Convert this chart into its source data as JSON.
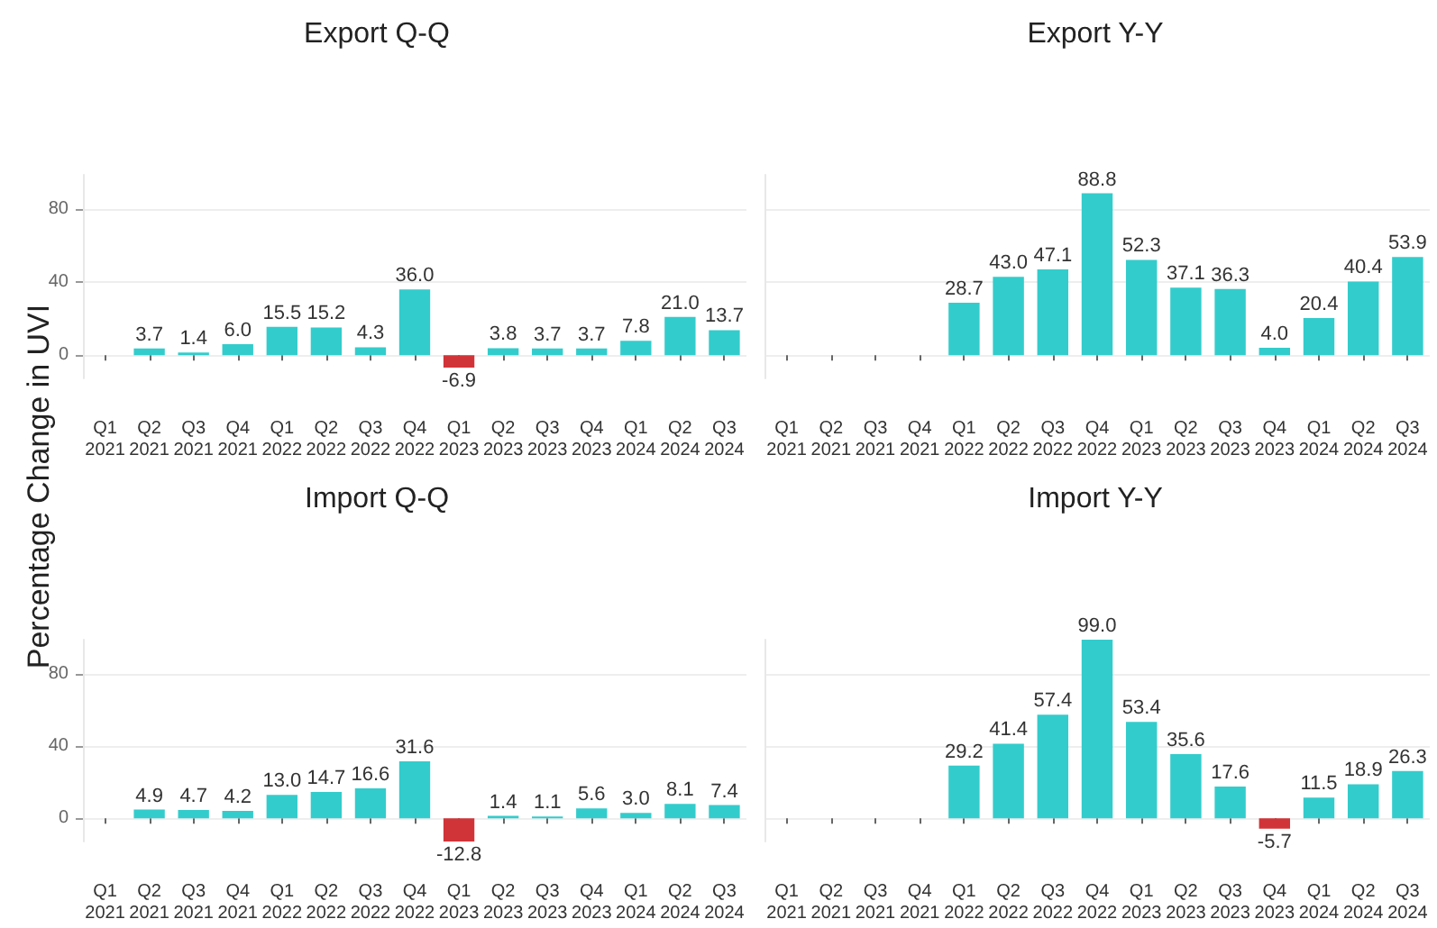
{
  "chart_data": [
    {
      "type": "bar",
      "title": "Export Q-Q",
      "ylabel": "Percentage Change in UVI",
      "categories": [
        "Q1\n2021",
        "Q2\n2021",
        "Q3\n2021",
        "Q4\n2021",
        "Q1\n2022",
        "Q2\n2022",
        "Q3\n2022",
        "Q4\n2022",
        "Q1\n2023",
        "Q2\n2023",
        "Q3\n2023",
        "Q4\n2023",
        "Q1\n2024",
        "Q2\n2024",
        "Q3\n2024"
      ],
      "values": [
        null,
        3.7,
        1.4,
        6.0,
        15.5,
        15.2,
        4.3,
        36.0,
        -6.9,
        3.8,
        3.7,
        3.7,
        7.8,
        21.0,
        13.7
      ],
      "colors": [
        "#33cccc",
        "#33cccc",
        "#33cccc",
        "#33cccc",
        "#33cccc",
        "#33cccc",
        "#33cccc",
        "#33cccc",
        "#d13438",
        "#33cccc",
        "#33cccc",
        "#33cccc",
        "#33cccc",
        "#33cccc",
        "#33cccc"
      ],
      "value_labels": [
        null,
        "3.7",
        "1.4",
        "6.0",
        "15.5",
        "15.2",
        "4.3",
        "36.0",
        "-6.9",
        "3.8",
        "3.7",
        "3.7",
        "7.8",
        "21.0",
        "13.7"
      ],
      "ylim": [
        -12.8,
        99
      ],
      "yticks": [
        0,
        40,
        80
      ],
      "grid": "y"
    },
    {
      "type": "bar",
      "title": "Export Y-Y",
      "categories": [
        "Q1\n2021",
        "Q2\n2021",
        "Q3\n2021",
        "Q4\n2021",
        "Q1\n2022",
        "Q2\n2022",
        "Q3\n2022",
        "Q4\n2022",
        "Q1\n2023",
        "Q2\n2023",
        "Q3\n2023",
        "Q4\n2023",
        "Q1\n2024",
        "Q2\n2024",
        "Q3\n2024"
      ],
      "values": [
        null,
        null,
        null,
        null,
        28.7,
        43.0,
        47.1,
        88.8,
        52.3,
        37.1,
        36.3,
        4.0,
        20.4,
        40.4,
        53.9
      ],
      "colors": [
        "#33cccc",
        "#33cccc",
        "#33cccc",
        "#33cccc",
        "#33cccc",
        "#33cccc",
        "#33cccc",
        "#33cccc",
        "#33cccc",
        "#33cccc",
        "#33cccc",
        "#33cccc",
        "#33cccc",
        "#33cccc",
        "#33cccc"
      ],
      "value_labels": [
        null,
        null,
        null,
        null,
        "28.7",
        "43.0",
        "47.1",
        "88.8",
        "52.3",
        "37.1",
        "36.3",
        "4.0",
        "20.4",
        "40.4",
        "53.9"
      ],
      "ylim": [
        -12.8,
        99
      ],
      "yticks": [
        0,
        40,
        80
      ],
      "grid": "y",
      "tick_labels": "x"
    },
    {
      "type": "bar",
      "title": "Import Q-Q",
      "categories": [
        "Q1\n2021",
        "Q2\n2021",
        "Q3\n2021",
        "Q4\n2021",
        "Q1\n2022",
        "Q2\n2022",
        "Q3\n2022",
        "Q4\n2022",
        "Q1\n2023",
        "Q2\n2023",
        "Q3\n2023",
        "Q4\n2023",
        "Q1\n2024",
        "Q2\n2024",
        "Q3\n2024"
      ],
      "values": [
        null,
        4.9,
        4.7,
        4.2,
        13.0,
        14.7,
        16.6,
        31.6,
        -12.8,
        1.4,
        1.1,
        5.6,
        3.0,
        8.1,
        7.4
      ],
      "colors": [
        "#33cccc",
        "#33cccc",
        "#33cccc",
        "#33cccc",
        "#33cccc",
        "#33cccc",
        "#33cccc",
        "#33cccc",
        "#d13438",
        "#33cccc",
        "#33cccc",
        "#33cccc",
        "#33cccc",
        "#33cccc",
        "#33cccc"
      ],
      "value_labels": [
        null,
        "4.9",
        "4.7",
        "4.2",
        "13.0",
        "14.7",
        "16.6",
        "31.6",
        "-12.8",
        "1.4",
        "1.1",
        "5.6",
        "3.0",
        "8.1",
        "7.4"
      ],
      "ylim": [
        -12.8,
        99
      ],
      "yticks": [
        0,
        40,
        80
      ],
      "grid": "y"
    },
    {
      "type": "bar",
      "title": "Import Y-Y",
      "categories": [
        "Q1\n2021",
        "Q2\n2021",
        "Q3\n2021",
        "Q4\n2021",
        "Q1\n2022",
        "Q2\n2022",
        "Q3\n2022",
        "Q4\n2022",
        "Q1\n2023",
        "Q2\n2023",
        "Q3\n2023",
        "Q4\n2023",
        "Q1\n2024",
        "Q2\n2024",
        "Q3\n2024"
      ],
      "values": [
        null,
        null,
        null,
        null,
        29.2,
        41.4,
        57.4,
        99.0,
        53.4,
        35.6,
        17.6,
        -5.7,
        11.5,
        18.9,
        26.3
      ],
      "colors": [
        "#33cccc",
        "#33cccc",
        "#33cccc",
        "#33cccc",
        "#33cccc",
        "#33cccc",
        "#33cccc",
        "#33cccc",
        "#33cccc",
        "#33cccc",
        "#33cccc",
        "#d13438",
        "#33cccc",
        "#33cccc",
        "#33cccc"
      ],
      "value_labels": [
        null,
        null,
        null,
        null,
        "29.2",
        "41.4",
        "57.4",
        "99.0",
        "53.4",
        "35.6",
        "17.6",
        "-5.7",
        "11.5",
        "18.9",
        "26.3"
      ],
      "ylim": [
        -12.8,
        99
      ],
      "yticks": [
        0,
        40,
        80
      ],
      "grid": "y",
      "tick_labels": "x"
    }
  ]
}
